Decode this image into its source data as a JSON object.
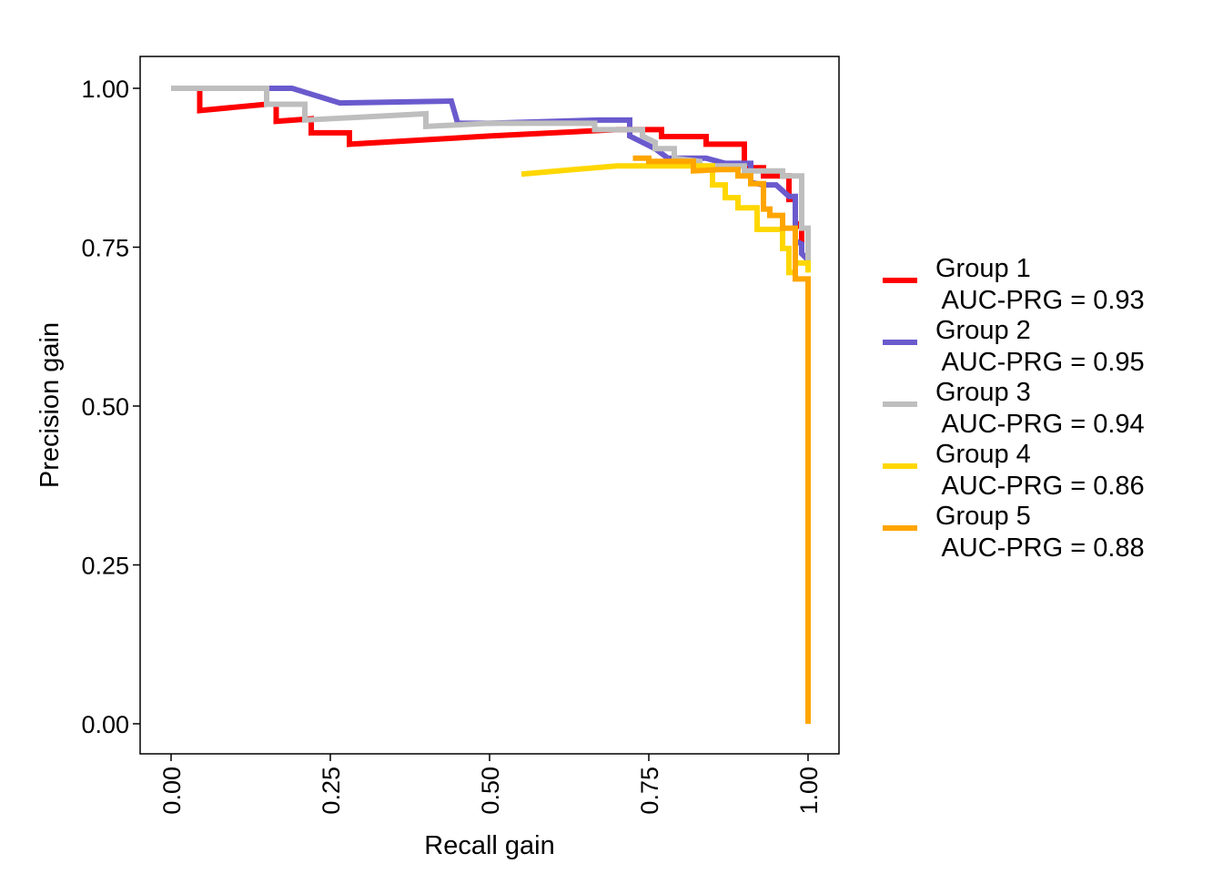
{
  "chart_data": {
    "type": "line",
    "title": "",
    "xlabel": "Recall gain",
    "ylabel": "Precision gain",
    "xlim": [
      -0.05,
      1.05
    ],
    "ylim": [
      -0.05,
      1.05
    ],
    "x_ticks": [
      "0.00",
      "0.25",
      "0.50",
      "0.75",
      "1.00"
    ],
    "y_ticks": [
      "0.00",
      "0.25",
      "0.50",
      "0.75",
      "1.00"
    ],
    "x_tick_values": [
      0,
      0.25,
      0.5,
      0.75,
      1.0
    ],
    "y_tick_values": [
      0,
      0.25,
      0.5,
      0.75,
      1.0
    ],
    "grid": false,
    "legend_position": "right",
    "series": [
      {
        "name": "Group 1",
        "auc_label": " AUC-PRG = 0.93",
        "color": "#FF0000",
        "points": [
          [
            0,
            1.0
          ],
          [
            0.045,
            1.0
          ],
          [
            0.045,
            0.965
          ],
          [
            0.15,
            0.975
          ],
          [
            0.165,
            0.975
          ],
          [
            0.165,
            0.948
          ],
          [
            0.22,
            0.952
          ],
          [
            0.22,
            0.93
          ],
          [
            0.28,
            0.93
          ],
          [
            0.28,
            0.912
          ],
          [
            0.5,
            0.925
          ],
          [
            0.7,
            0.935
          ],
          [
            0.77,
            0.935
          ],
          [
            0.77,
            0.924
          ],
          [
            0.84,
            0.924
          ],
          [
            0.84,
            0.912
          ],
          [
            0.9,
            0.912
          ],
          [
            0.9,
            0.875
          ],
          [
            0.93,
            0.875
          ],
          [
            0.93,
            0.862
          ],
          [
            0.97,
            0.862
          ],
          [
            0.97,
            0.825
          ],
          [
            0.98,
            0.825
          ],
          [
            0.98,
            0.79
          ],
          [
            0.99,
            0.78
          ],
          [
            0.99,
            0.74
          ],
          [
            1.0,
            0.73
          ]
        ]
      },
      {
        "name": "Group 2",
        "auc_label": " AUC-PRG = 0.95",
        "color": "#6A5ACD",
        "points": [
          [
            0,
            1.0
          ],
          [
            0.19,
            1.0
          ],
          [
            0.265,
            0.977
          ],
          [
            0.44,
            0.98
          ],
          [
            0.45,
            0.945
          ],
          [
            0.5,
            0.945
          ],
          [
            0.67,
            0.95
          ],
          [
            0.72,
            0.95
          ],
          [
            0.72,
            0.925
          ],
          [
            0.76,
            0.905
          ],
          [
            0.78,
            0.89
          ],
          [
            0.84,
            0.89
          ],
          [
            0.87,
            0.882
          ],
          [
            0.91,
            0.882
          ],
          [
            0.91,
            0.852
          ],
          [
            0.93,
            0.848
          ],
          [
            0.95,
            0.848
          ],
          [
            0.97,
            0.83
          ],
          [
            0.98,
            0.83
          ],
          [
            0.98,
            0.76
          ],
          [
            0.99,
            0.755
          ],
          [
            0.99,
            0.74
          ],
          [
            1.0,
            0.73
          ]
        ]
      },
      {
        "name": "Group 3",
        "auc_label": " AUC-PRG = 0.94",
        "color": "#BEBEBE",
        "points": [
          [
            0,
            1.0
          ],
          [
            0.15,
            1.0
          ],
          [
            0.15,
            0.975
          ],
          [
            0.21,
            0.975
          ],
          [
            0.21,
            0.95
          ],
          [
            0.4,
            0.96
          ],
          [
            0.4,
            0.94
          ],
          [
            0.5,
            0.945
          ],
          [
            0.665,
            0.945
          ],
          [
            0.665,
            0.935
          ],
          [
            0.74,
            0.935
          ],
          [
            0.74,
            0.925
          ],
          [
            0.76,
            0.915
          ],
          [
            0.76,
            0.905
          ],
          [
            0.79,
            0.905
          ],
          [
            0.79,
            0.89
          ],
          [
            0.83,
            0.885
          ],
          [
            0.83,
            0.878
          ],
          [
            0.9,
            0.878
          ],
          [
            0.9,
            0.87
          ],
          [
            0.96,
            0.87
          ],
          [
            0.96,
            0.862
          ],
          [
            0.99,
            0.862
          ],
          [
            0.99,
            0.78
          ],
          [
            1.0,
            0.78
          ],
          [
            1.0,
            0.72
          ]
        ]
      },
      {
        "name": "Group 4",
        "auc_label": " AUC-PRG = 0.86",
        "color": "#FFD700",
        "points": [
          [
            0.55,
            0.865
          ],
          [
            0.7,
            0.878
          ],
          [
            0.8,
            0.878
          ],
          [
            0.85,
            0.878
          ],
          [
            0.85,
            0.848
          ],
          [
            0.87,
            0.848
          ],
          [
            0.87,
            0.828
          ],
          [
            0.89,
            0.828
          ],
          [
            0.89,
            0.812
          ],
          [
            0.92,
            0.812
          ],
          [
            0.92,
            0.778
          ],
          [
            0.96,
            0.778
          ],
          [
            0.96,
            0.748
          ],
          [
            0.97,
            0.748
          ],
          [
            0.97,
            0.71
          ],
          [
            0.98,
            0.71
          ],
          [
            0.98,
            0.725
          ],
          [
            1.0,
            0.725
          ],
          [
            1.0,
            0.71
          ]
        ]
      },
      {
        "name": "Group 5",
        "auc_label": " AUC-PRG = 0.88",
        "color": "#FFA500",
        "points": [
          [
            0.725,
            0.89
          ],
          [
            0.75,
            0.89
          ],
          [
            0.75,
            0.885
          ],
          [
            0.8,
            0.885
          ],
          [
            0.82,
            0.885
          ],
          [
            0.82,
            0.87
          ],
          [
            0.86,
            0.872
          ],
          [
            0.89,
            0.872
          ],
          [
            0.89,
            0.862
          ],
          [
            0.91,
            0.862
          ],
          [
            0.91,
            0.85
          ],
          [
            0.93,
            0.85
          ],
          [
            0.93,
            0.81
          ],
          [
            0.94,
            0.81
          ],
          [
            0.94,
            0.8
          ],
          [
            0.96,
            0.8
          ],
          [
            0.96,
            0.78
          ],
          [
            0.98,
            0.78
          ],
          [
            0.98,
            0.7
          ],
          [
            1.0,
            0.7
          ],
          [
            1.0,
            0.0
          ]
        ]
      }
    ]
  }
}
